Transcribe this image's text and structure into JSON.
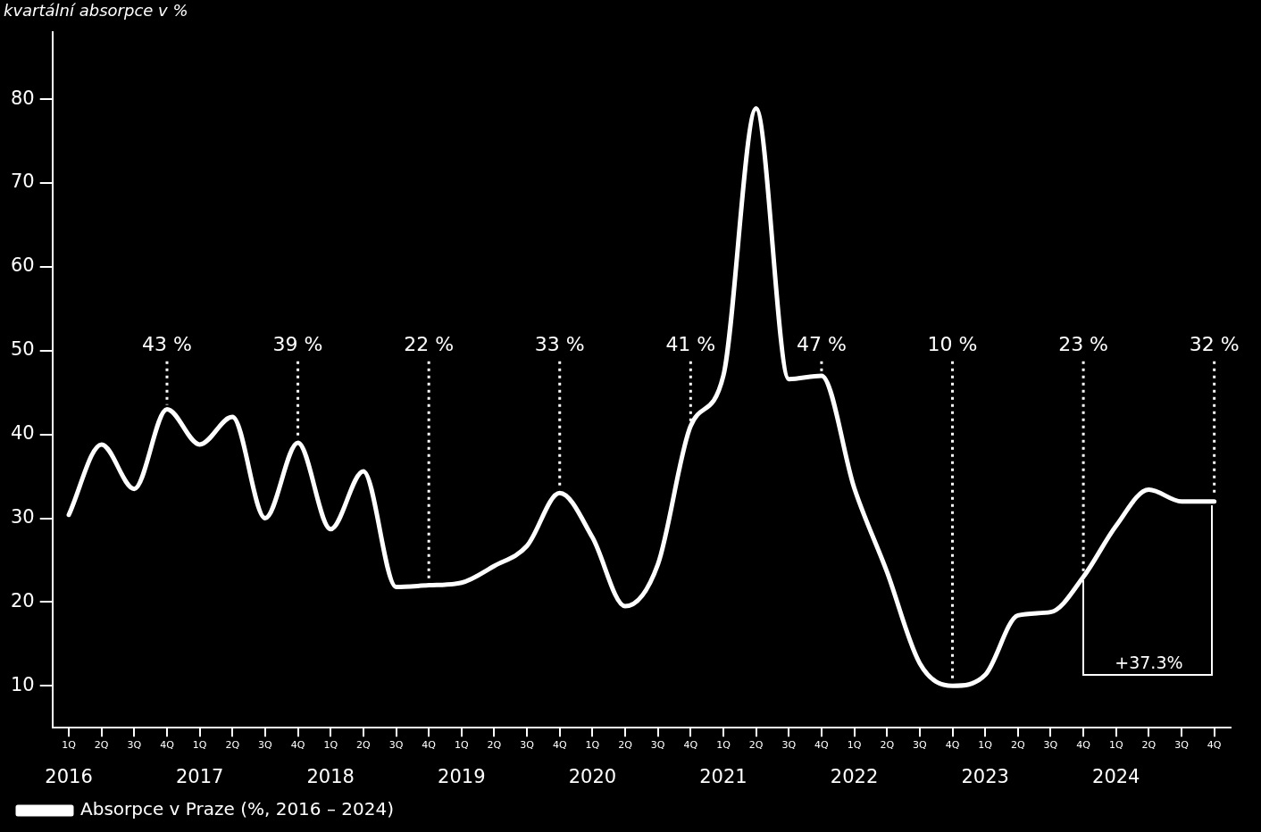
{
  "chart_data": {
    "type": "line",
    "ylabel": "kvartální absorpce v %",
    "categories": [
      "1Q\n2016",
      "2Q",
      "3Q",
      "4Q",
      "1Q\n2017",
      "2Q",
      "3Q",
      "4Q",
      "1Q\n2018",
      "2Q",
      "3Q",
      "4Q",
      "1Q\n2019",
      "2Q",
      "3Q",
      "4Q",
      "1Q\n2020",
      "2Q",
      "3Q",
      "4Q",
      "1Q\n2021",
      "2Q",
      "3Q",
      "4Q",
      "1Q\n2022",
      "2Q",
      "3Q",
      "4Q",
      "1Q\n2023",
      "2Q",
      "3Q",
      "4Q",
      "1Q\n2024",
      "2Q",
      "3Q",
      "4Q"
    ],
    "series": [
      {
        "name": "Absorpce v Praze (%, 2016 – 2024)",
        "color": "#ffffff",
        "values": [
          30.4,
          38.8,
          33.5,
          43,
          38.8,
          42.1,
          30.0,
          39,
          28.7,
          35.6,
          21.8,
          22,
          22.3,
          24.3,
          26.7,
          33,
          27.7,
          19.5,
          24.5,
          41,
          47,
          78.9,
          46.6,
          47,
          33.6,
          23.6,
          12.7,
          10,
          11.3,
          18.4,
          18.8,
          23,
          29.1,
          33.4,
          32.0,
          32
        ],
        "value_labels": [
          null,
          null,
          null,
          "43 %",
          null,
          null,
          null,
          "39 %",
          null,
          null,
          null,
          "22 %",
          null,
          null,
          null,
          "33 %",
          null,
          null,
          null,
          "41 %",
          null,
          null,
          null,
          "47 %",
          null,
          null,
          null,
          "10 %",
          null,
          null,
          null,
          "23 %",
          null,
          null,
          null,
          "32 %"
        ]
      }
    ],
    "ylim": [
      5,
      88
    ],
    "yticks": [
      10,
      20,
      30,
      40,
      50,
      60,
      70,
      80
    ],
    "annotations": [
      "+37.3%"
    ],
    "legend": "bottom left",
    "grid": false,
    "marker": "none",
    "line_style": "solid"
  }
}
